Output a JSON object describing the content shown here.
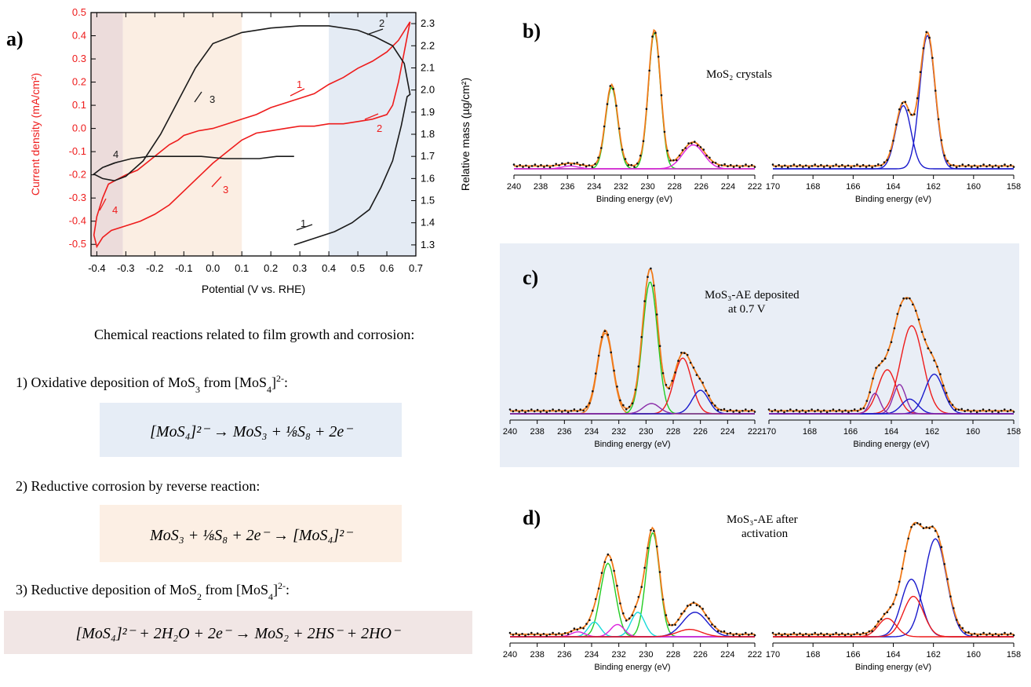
{
  "panel_labels": {
    "a": "a)",
    "b": "b)",
    "c": "c)",
    "d": "d)"
  },
  "reactions": {
    "heading": "Chemical reactions related to film growth and corrosion:",
    "r1_prefix": "1) Oxidative deposition of MoS",
    "r1_sub": "3",
    "r1_mid": " from [MoS",
    "r1_sub2": "4",
    "r1_end": "]",
    "r1_sup": "2-",
    "r1_colon": ":",
    "r2": "2) Reductive corrosion by reverse reaction:",
    "r3_prefix": "3) Reductive deposition of MoS",
    "r3_sub": "2",
    "r3_mid": " from [MoS",
    "r3_sub2": "4",
    "r3_end": "]",
    "r3_sup": "2-",
    "r3_colon": ":",
    "eq1": "[MoS₄]²⁻ → MoS₃ + ⅛S₈ + 2e⁻",
    "eq2": "MoS₃ + ⅛S₈ + 2e⁻ → [MoS₄]²⁻",
    "eq3": "[MoS₄]²⁻ + 2H₂O + 2e⁻ → MoS₂ + 2HS⁻ + 2HO⁻",
    "box_colors": {
      "eq1": "#e6edf6",
      "eq2": "#fcefe4",
      "eq3": "#f1e6e5"
    }
  },
  "chart_data": [
    {
      "id": "a",
      "type": "line",
      "xlabel": "Potential (V vs. RHE)",
      "ylabel": "Current density (mA/cm²)",
      "y2label": "Relative mass (µg/cm²)",
      "xlim": [
        -0.42,
        0.7
      ],
      "ylim": [
        -0.55,
        0.5
      ],
      "y2lim": [
        1.25,
        2.35
      ],
      "x_ticks": [
        "-0.4",
        "-0.3",
        "-0.2",
        "-0.1",
        "0.0",
        "0.1",
        "0.2",
        "0.3",
        "0.4",
        "0.5",
        "0.6",
        "0.7"
      ],
      "y_ticks": [
        "-0.5",
        "-0.4",
        "-0.3",
        "-0.2",
        "-0.1",
        "0.0",
        "0.1",
        "0.2",
        "0.3",
        "0.4",
        "0.5"
      ],
      "y2_ticks": [
        "1.3",
        "1.4",
        "1.5",
        "1.6",
        "1.7",
        "1.8",
        "1.9",
        "2.0",
        "2.1",
        "2.2",
        "2.3"
      ],
      "shaded_regions": [
        {
          "x": [
            -0.42,
            -0.31
          ],
          "color": "#ecdcdb"
        },
        {
          "x": [
            -0.31,
            0.1
          ],
          "color": "#fbeee3"
        },
        {
          "x": [
            0.4,
            0.7
          ],
          "color": "#e4ebf4"
        }
      ],
      "series": [
        {
          "axis": "left",
          "color": "#ee1c1c",
          "x": [
            0.1,
            0.15,
            0.2,
            0.25,
            0.3,
            0.35,
            0.4,
            0.45,
            0.5,
            0.55,
            0.6,
            0.64,
            0.67,
            0.68,
            0.66,
            0.64,
            0.62,
            0.6,
            0.55,
            0.5,
            0.45,
            0.4,
            0.35,
            0.3,
            0.25,
            0.2,
            0.15,
            0.1,
            0.05,
            0.0,
            -0.05,
            -0.1,
            -0.15,
            -0.2,
            -0.25,
            -0.3,
            -0.35,
            -0.38,
            -0.4,
            -0.41,
            -0.4,
            -0.38,
            -0.36,
            -0.33,
            -0.3,
            -0.26,
            -0.22,
            -0.18,
            -0.15,
            -0.12,
            -0.1,
            -0.05,
            0.0,
            0.05,
            0.1
          ],
          "y": [
            0.04,
            0.06,
            0.09,
            0.11,
            0.13,
            0.15,
            0.19,
            0.22,
            0.26,
            0.29,
            0.33,
            0.38,
            0.44,
            0.46,
            0.33,
            0.2,
            0.1,
            0.06,
            0.04,
            0.03,
            0.02,
            0.02,
            0.01,
            0.01,
            0.0,
            -0.01,
            -0.02,
            -0.05,
            -0.1,
            -0.15,
            -0.21,
            -0.27,
            -0.33,
            -0.37,
            -0.4,
            -0.42,
            -0.44,
            -0.47,
            -0.51,
            -0.46,
            -0.38,
            -0.3,
            -0.24,
            -0.22,
            -0.2,
            -0.18,
            -0.14,
            -0.1,
            -0.07,
            -0.05,
            -0.03,
            -0.01,
            0.0,
            0.02,
            0.04
          ]
        },
        {
          "axis": "right",
          "color": "#1a1a1a",
          "x": [
            0.28,
            0.35,
            0.42,
            0.48,
            0.54,
            0.58,
            0.62,
            0.65,
            0.67,
            0.68,
            0.66,
            0.62,
            0.56,
            0.5,
            0.4,
            0.3,
            0.2,
            0.1,
            0.0,
            -0.06,
            -0.12,
            -0.18,
            -0.24,
            -0.3,
            -0.34,
            -0.38,
            -0.41,
            -0.38,
            -0.34,
            -0.28,
            -0.22,
            -0.16,
            -0.1,
            -0.04,
            0.04,
            0.1,
            0.16,
            0.22,
            0.28
          ],
          "y": [
            1.3,
            1.33,
            1.36,
            1.4,
            1.46,
            1.56,
            1.68,
            1.84,
            1.97,
            1.98,
            2.12,
            2.2,
            2.24,
            2.27,
            2.29,
            2.29,
            2.28,
            2.26,
            2.21,
            2.1,
            1.95,
            1.8,
            1.68,
            1.61,
            1.59,
            1.6,
            1.62,
            1.65,
            1.67,
            1.69,
            1.7,
            1.7,
            1.7,
            1.7,
            1.69,
            1.69,
            1.69,
            1.7,
            1.7
          ]
        }
      ],
      "annotations": [
        {
          "text": "1",
          "color": "#ee1c1c"
        },
        {
          "text": "2",
          "color": "#ee1c1c"
        },
        {
          "text": "3",
          "color": "#ee1c1c"
        },
        {
          "text": "4",
          "color": "#ee1c1c"
        },
        {
          "text": "1",
          "color": "#1a1a1a"
        },
        {
          "text": "2",
          "color": "#1a1a1a"
        },
        {
          "text": "3",
          "color": "#1a1a1a"
        },
        {
          "text": "4",
          "color": "#1a1a1a"
        }
      ]
    },
    {
      "id": "b",
      "type": "line",
      "title": "MoS₂ crystals",
      "xlabel": "Binding energy (eV)",
      "left_x_ticks": [
        "240",
        "238",
        "236",
        "234",
        "232",
        "230",
        "228",
        "226",
        "224",
        "222"
      ],
      "right_x_ticks": [
        "170",
        "168",
        "166",
        "164",
        "162",
        "160",
        "158"
      ]
    },
    {
      "id": "c",
      "type": "line",
      "title": "MoS₃-AE deposited",
      "title2": "at 0.7 V",
      "xlabel": "Binding energy (eV)",
      "left_x_ticks": [
        "240",
        "238",
        "236",
        "234",
        "232",
        "230",
        "228",
        "226",
        "224",
        "222"
      ],
      "right_x_ticks": [
        "170",
        "168",
        "166",
        "164",
        "162",
        "160",
        "158"
      ],
      "background": "#e9eef6"
    },
    {
      "id": "d",
      "type": "line",
      "title": "MoS₃-AE after",
      "title2": "activation",
      "xlabel": "Binding energy (eV)",
      "left_x_ticks": [
        "240",
        "238",
        "236",
        "234",
        "232",
        "230",
        "228",
        "226",
        "224",
        "222"
      ],
      "right_x_ticks": [
        "170",
        "168",
        "166",
        "164",
        "162",
        "160",
        "158"
      ]
    }
  ]
}
